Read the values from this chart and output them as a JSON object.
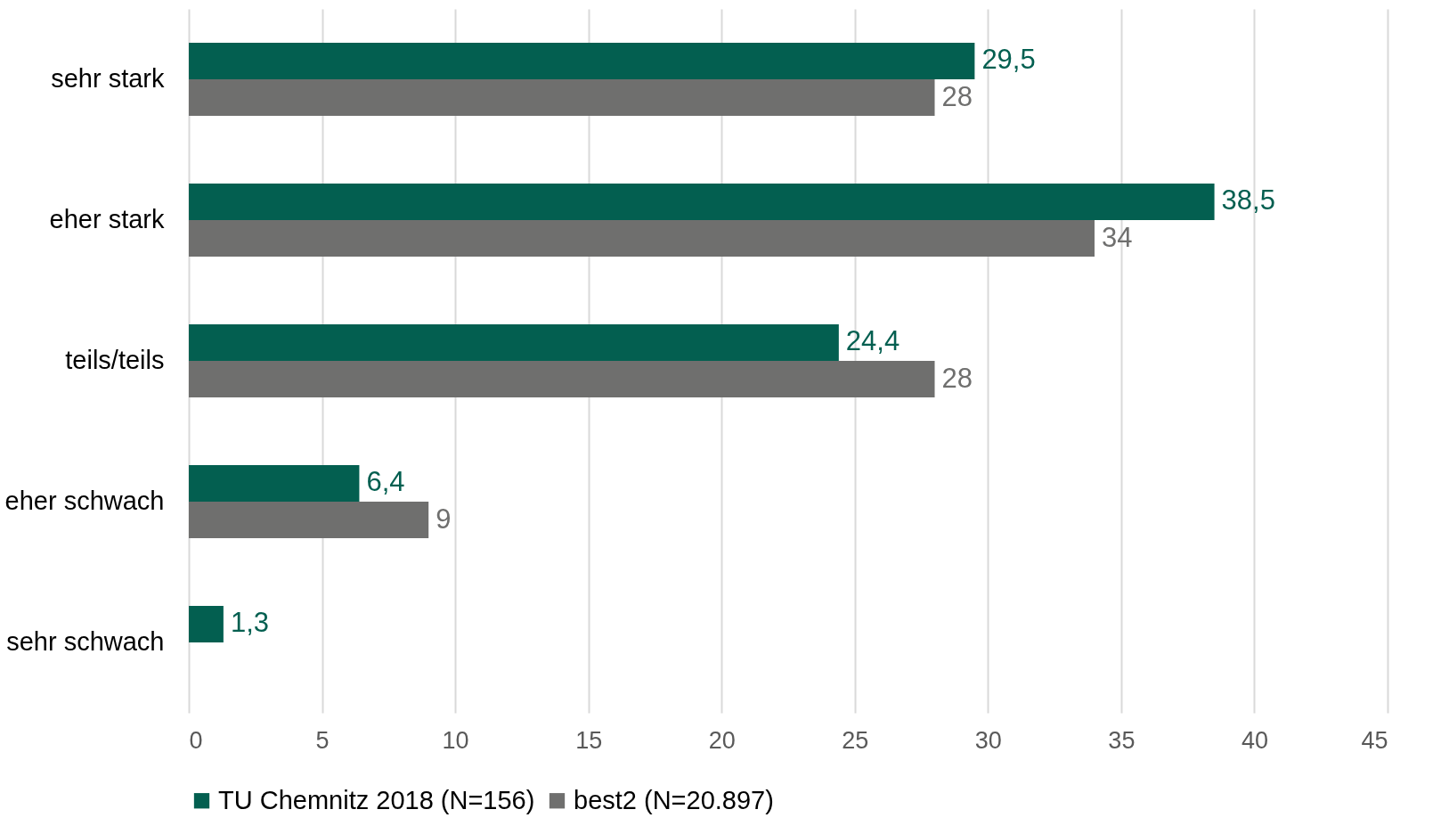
{
  "chart_data": {
    "type": "bar",
    "orientation": "horizontal",
    "categories": [
      "sehr stark",
      "eher stark",
      "teils/teils",
      "eher schwach",
      "sehr schwach"
    ],
    "series": [
      {
        "name": "TU Chemnitz 2018 (N=156)",
        "color": "#035f50",
        "values": [
          29.5,
          38.5,
          24.4,
          6.4,
          1.3
        ],
        "value_labels": [
          "29,5",
          "38,5",
          "24,4",
          "6,4",
          "1,3"
        ]
      },
      {
        "name": "best2 (N=20.897)",
        "color": "#6f6f6e",
        "values": [
          28,
          34,
          28,
          9,
          null
        ],
        "value_labels": [
          "28",
          "34",
          "28",
          "9",
          null
        ]
      }
    ],
    "xlim": [
      0,
      45
    ],
    "xticks": [
      0,
      5,
      10,
      15,
      20,
      25,
      30,
      35,
      40,
      45
    ],
    "grid": "x",
    "legend": "bottom"
  }
}
